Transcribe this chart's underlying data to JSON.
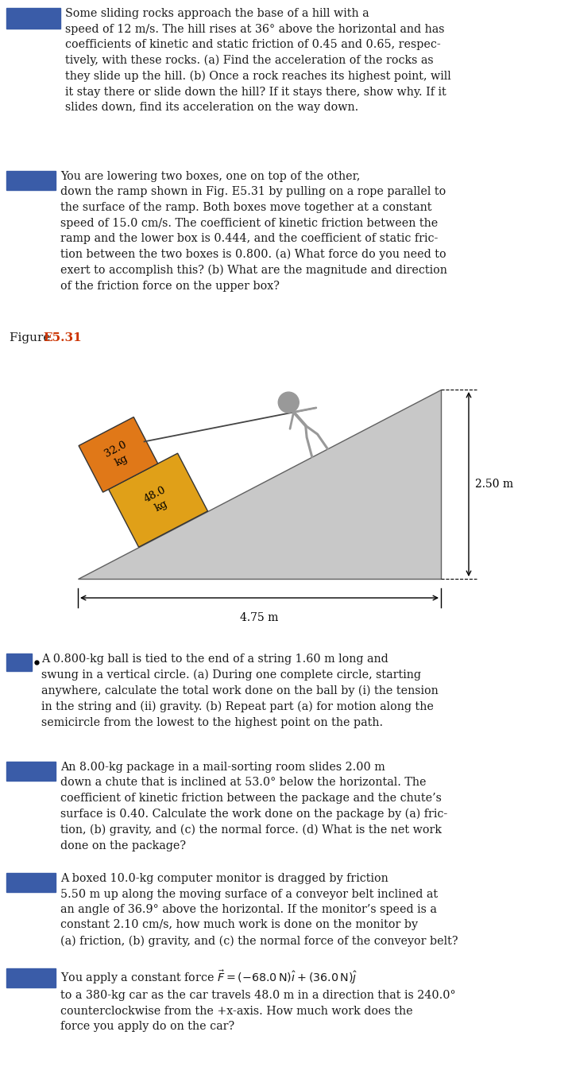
{
  "bg_color": "#ffffff",
  "text_color": "#1a1a1a",
  "blue_box_color": "#3a5ca8",
  "figure_label_color": "#cc3300",
  "ramp_color": "#c8c8c8",
  "upper_box_color": "#e07818",
  "lower_box_color": "#e0a018",
  "para1": "Some sliding rocks approach the base of a hill with a\nspeed of 12 m/s. The hill rises at 36° above the horizontal and has\ncoefficients of kinetic and static friction of 0.45 and 0.65, respec-\ntively, with these rocks. (a) Find the acceleration of the rocks as\nthey slide up the hill. (b) Once a rock reaches its highest point, will\nit stay there or slide down the hill? If it stays there, show why. If it\nslides down, find its acceleration on the way down.",
  "para2": "You are lowering two boxes, one on top of the other,\ndown the ramp shown in Fig. E5.31 by pulling on a rope parallel to\nthe surface of the ramp. Both boxes move together at a constant\nspeed of 15.0 cm/s. The coefficient of kinetic friction between the\nramp and the lower box is 0.444, and the coefficient of static fric-\ntion between the two boxes is 0.800. (a) What force do you need to\nexert to accomplish this? (b) What are the magnitude and direction\nof the friction force on the upper box?",
  "para3": "A 0.800-kg ball is tied to the end of a string 1.60 m long and\nswung in a vertical circle. (a) During one complete circle, starting\nanywhere, calculate the total work done on the ball by (i) the tension\nin the string and (ii) gravity. (b) Repeat part (a) for motion along the\nsemicircle from the lowest to the highest point on the path.",
  "para4": "An 8.00-kg package in a mail-sorting room slides 2.00 m\ndown a chute that is inclined at 53.0° below the horizontal. The\ncoefficient of kinetic friction between the package and the chute’s\nsurface is 0.40. Calculate the work done on the package by (a) fric-\ntion, (b) gravity, and (c) the normal force. (d) What is the net work\ndone on the package?",
  "para5": "A boxed 10.0-kg computer monitor is dragged by friction\n5.50 m up along the moving surface of a conveyor belt inclined at\nan angle of 36.9° above the horizontal. If the monitor’s speed is a\nconstant 2.10 cm/s, how much work is done on the monitor by\n(a) friction, (b) gravity, and (c) the normal force of the conveyor belt?",
  "para6": "You apply a constant force $\\vec{F} = (-68.0\\,\\mathrm{N})\\hat{\\imath} + (36.0\\,\\mathrm{N})\\hat{\\jmath}$\nto a 380-kg car as the car travels 48.0 m in a direction that is 240.0°\ncounterclockwise from the +x-axis. How much work does the\nforce you apply do on the car?",
  "dim_width": "4.75 m",
  "dim_height": "2.50 m",
  "figure_label_plain": "Figure ",
  "figure_label_bold": "E5.31"
}
